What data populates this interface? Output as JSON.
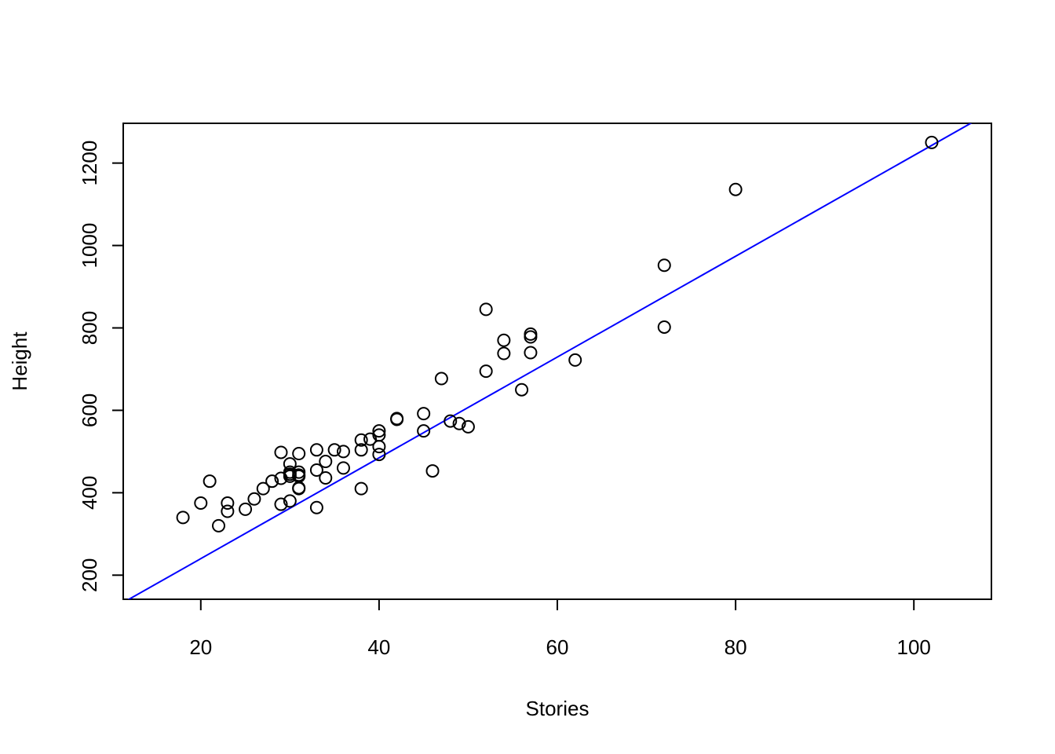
{
  "chart_data": {
    "type": "scatter",
    "title": "",
    "xlabel": "Stories",
    "ylabel": "Height",
    "xlim": [
      11.3,
      108.7
    ],
    "ylim": [
      141.5,
      1296.5
    ],
    "xticks": [
      20,
      40,
      60,
      80,
      100
    ],
    "yticks": [
      200,
      400,
      600,
      800,
      1000,
      1200
    ],
    "grid": false,
    "legend": "none",
    "point_color": "#000000",
    "line_color": "#0000ff",
    "series": [
      {
        "type": "scatter",
        "x": [
          18,
          20,
          21,
          22,
          23,
          23,
          25,
          26,
          27,
          28,
          29,
          29,
          29,
          30,
          30,
          30,
          30,
          30,
          31,
          31,
          31,
          31,
          31,
          31,
          33,
          33,
          33,
          34,
          34,
          35,
          36,
          36,
          38,
          38,
          38,
          39,
          40,
          40,
          40,
          40,
          42,
          42,
          45,
          45,
          46,
          47,
          48,
          49,
          50,
          52,
          52,
          54,
          54,
          56,
          57,
          57,
          57,
          62,
          72,
          72,
          80,
          102
        ],
        "y": [
          340,
          375,
          428,
          320,
          375,
          355,
          360,
          385,
          410,
          428,
          498,
          372,
          435,
          380,
          470,
          440,
          450,
          445,
          495,
          450,
          440,
          412,
          410,
          443,
          504,
          364,
          455,
          476,
          436,
          504,
          500,
          460,
          528,
          504,
          410,
          530,
          550,
          512,
          540,
          493,
          580,
          578,
          592,
          550,
          453,
          677,
          574,
          568,
          560,
          845,
          695,
          770,
          738,
          650,
          785,
          778,
          740,
          722,
          952,
          802,
          1136,
          1250
        ]
      },
      {
        "type": "line",
        "name": "",
        "intercept": -4.51,
        "slope": 12.23
      }
    ]
  }
}
